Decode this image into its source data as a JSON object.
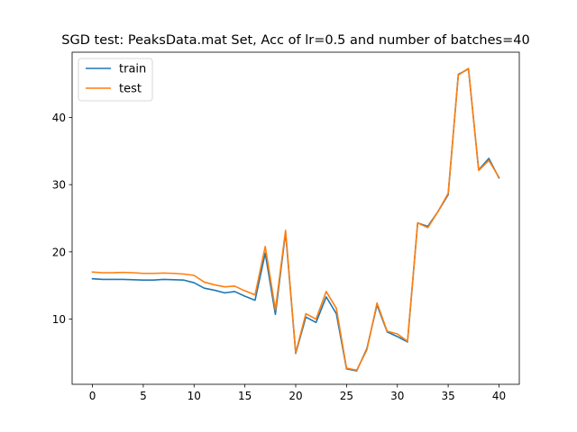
{
  "chart_data": {
    "type": "line",
    "title": "SGD test: PeaksData.mat Set, Acc of lr=0.5 and number of batches=40",
    "xlabel": "",
    "ylabel": "",
    "xlim": [
      -2,
      42
    ],
    "ylim": [
      0.3,
      49.7
    ],
    "xticks": [
      0,
      5,
      10,
      15,
      20,
      25,
      30,
      35,
      40
    ],
    "yticks": [
      10,
      20,
      30,
      40
    ],
    "grid": false,
    "legend": "top-left",
    "x": [
      0,
      1,
      2,
      3,
      4,
      5,
      6,
      7,
      8,
      9,
      10,
      11,
      12,
      13,
      14,
      15,
      16,
      17,
      18,
      19,
      20,
      21,
      22,
      23,
      24,
      25,
      26,
      27,
      28,
      29,
      30,
      31,
      32,
      33,
      34,
      35,
      36,
      37,
      38,
      39,
      40
    ],
    "series": [
      {
        "name": "train",
        "color": "#1f77b4",
        "values": [
          16.0,
          15.9,
          15.9,
          15.9,
          15.85,
          15.8,
          15.8,
          15.9,
          15.85,
          15.8,
          15.4,
          14.6,
          14.3,
          13.9,
          14.1,
          13.4,
          12.8,
          19.8,
          10.7,
          22.9,
          4.9,
          10.3,
          9.5,
          13.3,
          10.8,
          2.6,
          2.3,
          5.6,
          12.1,
          8.1,
          7.4,
          6.6,
          24.3,
          23.8,
          26.0,
          28.5,
          46.4,
          47.2,
          32.2,
          33.9,
          31.0
        ]
      },
      {
        "name": "test",
        "color": "#ff7f0e",
        "values": [
          17.0,
          16.9,
          16.9,
          16.95,
          16.9,
          16.8,
          16.8,
          16.85,
          16.8,
          16.7,
          16.5,
          15.5,
          15.1,
          14.8,
          14.9,
          14.2,
          13.6,
          20.8,
          11.4,
          23.2,
          5.0,
          10.8,
          10.0,
          14.1,
          11.6,
          2.7,
          2.4,
          5.4,
          12.4,
          8.2,
          7.8,
          6.7,
          24.3,
          23.6,
          26.0,
          28.7,
          46.3,
          47.3,
          32.1,
          33.6,
          31.1
        ]
      }
    ]
  }
}
